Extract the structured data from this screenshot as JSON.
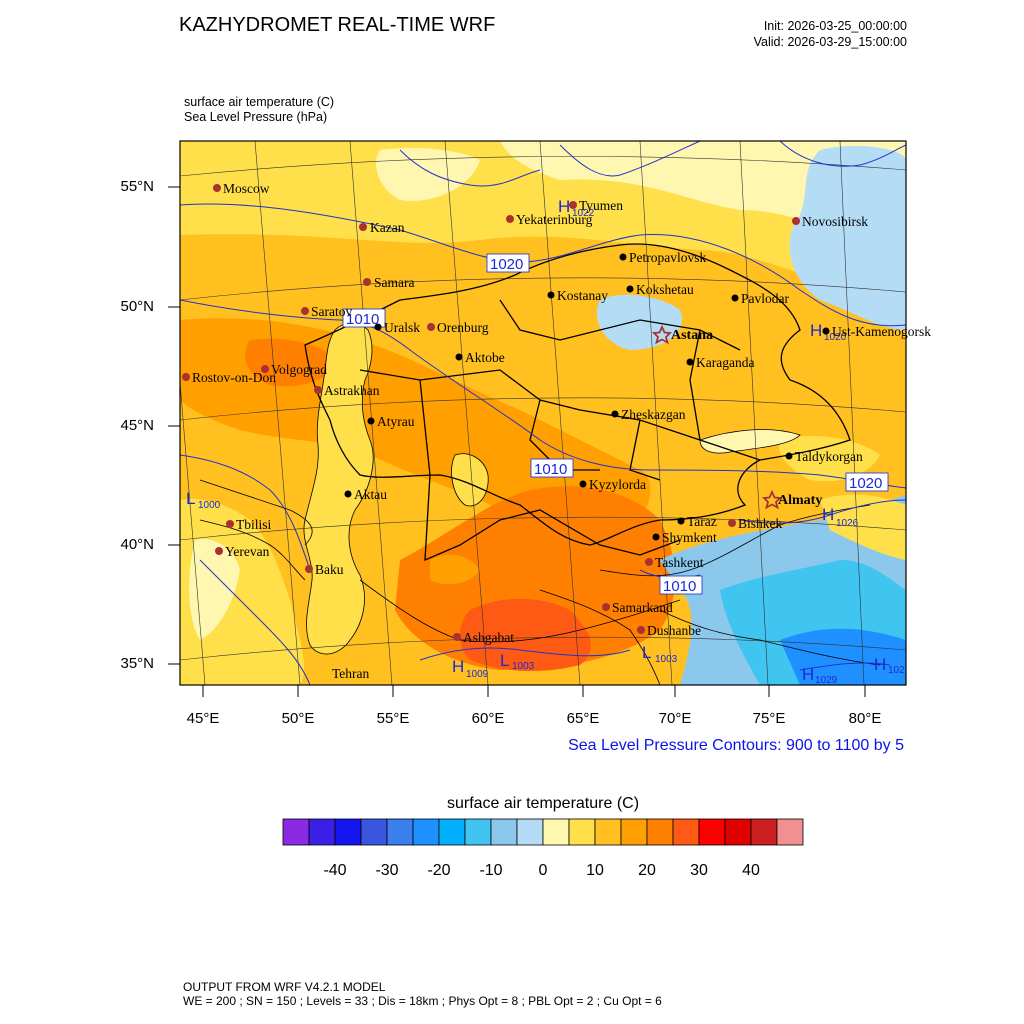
{
  "header": {
    "title": "KAZHYDROMET REAL-TIME WRF",
    "init": "Init: 2026-03-25_00:00:00",
    "valid": "Valid: 2026-03-29_15:00:00",
    "var_line1": "surface air temperature   (C)",
    "var_line2": "Sea Level Pressure   (hPa)"
  },
  "axes": {
    "lat_labels": [
      "55°N",
      "50°N",
      "45°N",
      "40°N",
      "35°N"
    ],
    "lon_labels": [
      "45°E",
      "50°E",
      "55°E",
      "60°E",
      "65°E",
      "70°E",
      "75°E",
      "80°E"
    ]
  },
  "cities_foreign": [
    "Moscow",
    "Kazan",
    "Samara",
    "Saratov",
    "Volgograd",
    "Rostov-on-Don",
    "Astrakhan",
    "Orenburg",
    "Yekaterinburg",
    "Tyumen",
    "Novosibirsk",
    "Tbilisi",
    "Yerevan",
    "Baku",
    "Tehran",
    "Ashgabat",
    "Samarkand",
    "Dushanbe",
    "Tashkent",
    "Bishkek"
  ],
  "cities_kz": [
    "Uralsk",
    "Aktobe",
    "Atyrau",
    "Aktau",
    "Kostanay",
    "Petropavlovsk",
    "Kokshetau",
    "Pavlodar",
    "Ust-Kamenogorsk",
    "Karaganda",
    "Zheskazgan",
    "Kyzylorda",
    "Taldykorgan",
    "Taraz",
    "Shymkent"
  ],
  "capitals": [
    "Astana",
    "Almaty"
  ],
  "isobar_labels": [
    "1020",
    "1010",
    "1010",
    "1020",
    "1010"
  ],
  "pressure_centers": [
    {
      "type": "H",
      "value": "1022"
    },
    {
      "type": "H",
      "value": "1020"
    },
    {
      "type": "L",
      "value": "1000"
    },
    {
      "type": "H",
      "value": "1026"
    },
    {
      "type": "H",
      "value": "1009"
    },
    {
      "type": "L",
      "value": "1003"
    },
    {
      "type": "L",
      "value": "1003"
    },
    {
      "type": "H",
      "value": "1029"
    },
    {
      "type": "H",
      "value": "102"
    }
  ],
  "contour_note": "Sea Level Pressure Contours: 900 to 1100 by 5",
  "colorbar": {
    "title": "surface air temperature  (C)",
    "colors": [
      "#8a2be2",
      "#3b1fe6",
      "#1414f0",
      "#3a55e0",
      "#3a7ff0",
      "#1e90ff",
      "#00b0ff",
      "#40c4f0",
      "#8cc8ec",
      "#b4dcf4",
      "#fff7b0",
      "#ffe04a",
      "#ffc020",
      "#ffa000",
      "#ff8000",
      "#ff5a14",
      "#ff0000",
      "#e00000",
      "#cc1f1f",
      "#f09090"
    ],
    "labels": [
      "-40",
      "-30",
      "-20",
      "-10",
      "0",
      "10",
      "20",
      "30",
      "40"
    ]
  },
  "footer": {
    "line1": "OUTPUT FROM WRF V4.2.1 MODEL",
    "line2": "WE = 200 ; SN = 150 ; Levels = 33 ; Dis = 18km ; Phys Opt = 8 ; PBL Opt = 2 ; Cu Opt = 6"
  }
}
